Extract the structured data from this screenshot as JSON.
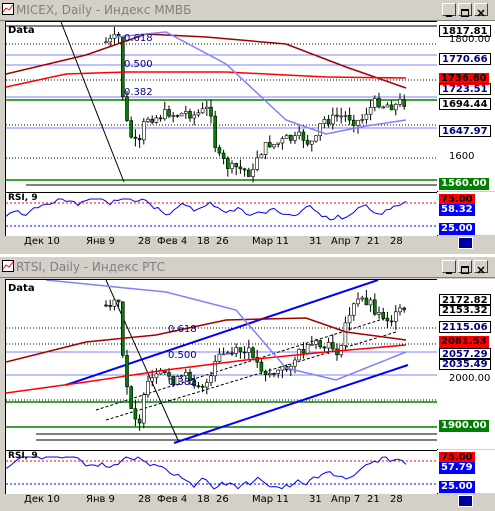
{
  "windows": [
    {
      "title": "MICEX, Daily - Индекс ММВБ",
      "data_label": "Data",
      "fib": [
        "0.618",
        "0.500",
        "0.382"
      ],
      "price_axis": [
        "1800.00",
        "1600"
      ],
      "price_tags": [
        {
          "text": "1817.81",
          "bg": "#ffffff",
          "fg": "#000000"
        },
        {
          "text": "1770.66",
          "bg": "#ffffff",
          "fg": "#000080"
        },
        {
          "text": "1736.60",
          "bg": "#ff0000",
          "fg": "#000000"
        },
        {
          "text": "1723.51",
          "bg": "#ffffff",
          "fg": "#000080"
        },
        {
          "text": "1694.44",
          "bg": "#ffffff",
          "fg": "#000000"
        },
        {
          "text": "1647.97",
          "bg": "#ffffff",
          "fg": "#000080"
        },
        {
          "text": "1560.00",
          "bg": "#008000",
          "fg": "#ffffff"
        }
      ],
      "rsi_label": "RSI, 9",
      "rsi_tags": [
        {
          "text": "75.00",
          "bg": "#ff0000",
          "fg": "#000000"
        },
        {
          "text": "58.32",
          "bg": "#0000ff",
          "fg": "#ffffff"
        },
        {
          "text": "25.00",
          "bg": "#0000ff",
          "fg": "#ffffff"
        }
      ],
      "dates": [
        "Дек 10",
        "Янв 9",
        "28",
        "Фев 4",
        "18",
        "26",
        "Мар 11",
        "31",
        "Апр 7",
        "21",
        "28"
      ]
    },
    {
      "title": "RTSI, Daily - Индекс РТС",
      "data_label": "Data",
      "fib": [
        "0.618",
        "0.500",
        "0.382"
      ],
      "price_axis": [
        "2000.00"
      ],
      "price_tags": [
        {
          "text": "2172.82",
          "bg": "#ffffff",
          "fg": "#000000"
        },
        {
          "text": "2153.32",
          "bg": "#ffffff",
          "fg": "#000000"
        },
        {
          "text": "2115.06",
          "bg": "#ffffff",
          "fg": "#000080"
        },
        {
          "text": "2081.53",
          "bg": "#ff0000",
          "fg": "#000000"
        },
        {
          "text": "2057.29",
          "bg": "#ffffff",
          "fg": "#000080"
        },
        {
          "text": "2035.49",
          "bg": "#ffffff",
          "fg": "#000080"
        },
        {
          "text": "1900.00",
          "bg": "#008000",
          "fg": "#ffffff"
        }
      ],
      "rsi_label": "RSI, 9",
      "rsi_tags": [
        {
          "text": "75.00",
          "bg": "#ff0000",
          "fg": "#000000"
        },
        {
          "text": "57.79",
          "bg": "#0000ff",
          "fg": "#ffffff"
        },
        {
          "text": "25.00",
          "bg": "#0000ff",
          "fg": "#ffffff"
        }
      ],
      "dates": [
        "Дек 10",
        "Янв 9",
        "28",
        "Фев 4",
        "18",
        "26",
        "Мар 11",
        "31",
        "Апр 7",
        "21",
        "28"
      ]
    }
  ],
  "colors": {
    "candle_up": "#ffffff",
    "candle_down": "#008000",
    "ma_long": "#a00000",
    "ma_mid": "#ff0000",
    "ma_short": "#8080ff",
    "trend": "#0000ff",
    "support": "#008000"
  }
}
